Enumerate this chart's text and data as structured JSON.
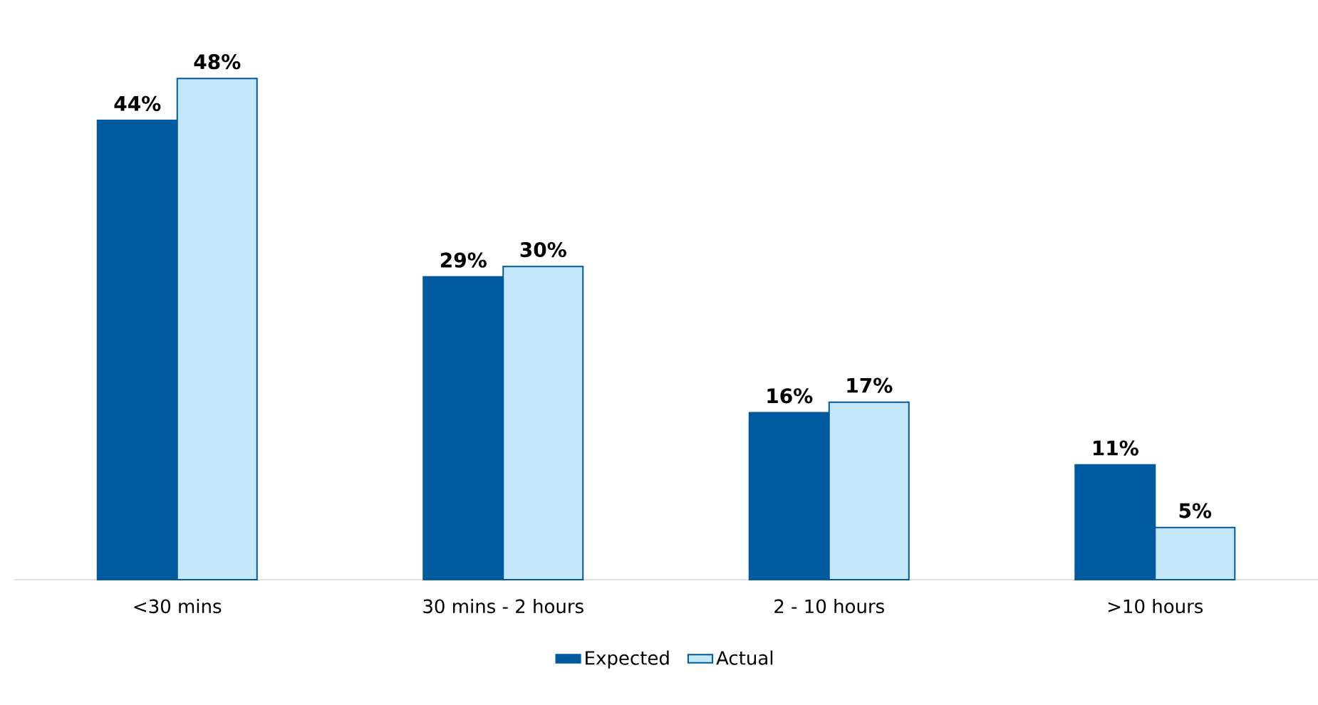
{
  "chart_data": {
    "type": "bar",
    "categories": [
      "<30 mins",
      "30 mins - 2 hours",
      "2 - 10 hours",
      ">10 hours"
    ],
    "series": [
      {
        "name": "Expected",
        "color": "#005a9e",
        "values": [
          44,
          29,
          16,
          11
        ],
        "value_labels": [
          "44%",
          "29%",
          "16%",
          "11%"
        ]
      },
      {
        "name": "Actual",
        "color": "#c5e7fa",
        "values": [
          48,
          30,
          17,
          5
        ],
        "value_labels": [
          "48%",
          "30%",
          "17%",
          "5%"
        ]
      }
    ],
    "legend": "bottom"
  }
}
